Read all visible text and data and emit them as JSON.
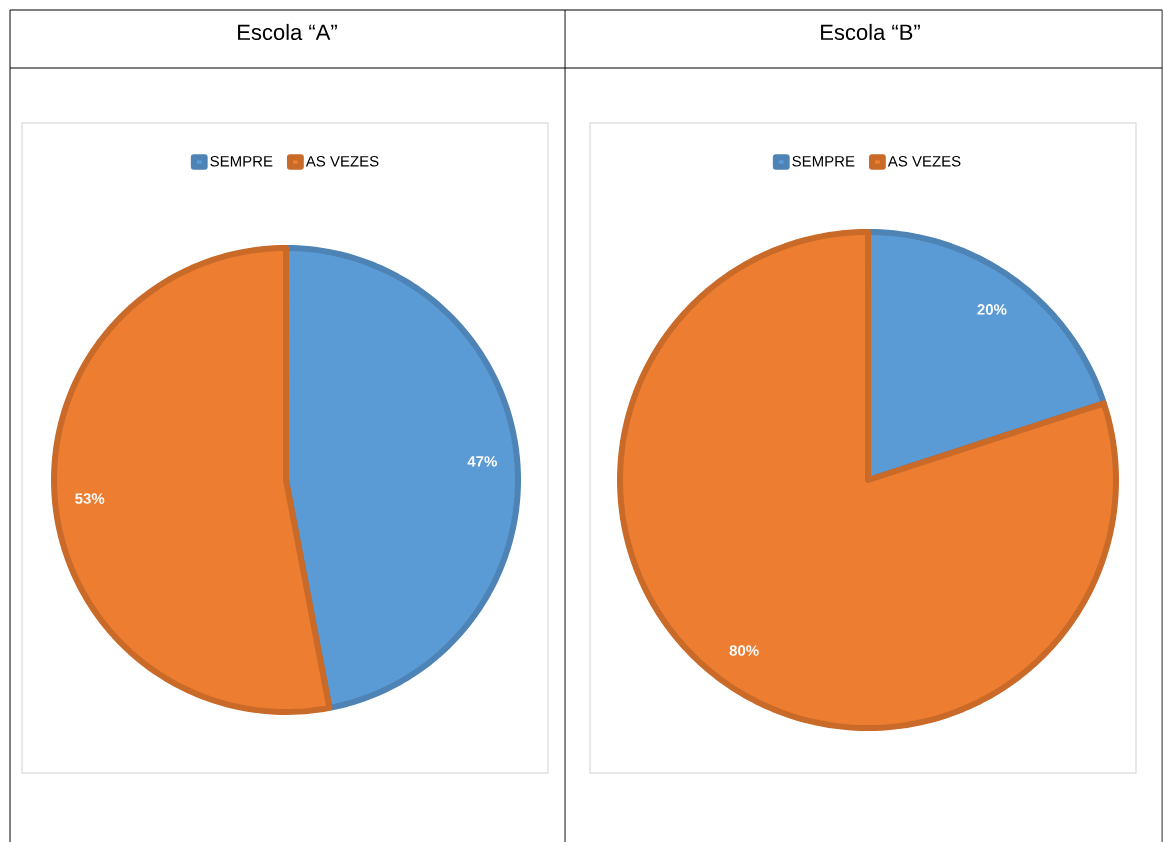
{
  "chart_data": [
    {
      "type": "pie",
      "title": "Escola “A”",
      "categories": [
        "SEMPRE",
        "AS VEZES"
      ],
      "values": [
        47,
        53
      ],
      "colors": [
        "#5b9bd5",
        "#ed7d31"
      ],
      "value_labels": [
        "47%",
        "53%"
      ],
      "legend": "top"
    },
    {
      "type": "pie",
      "title": "Escola “B”",
      "categories": [
        "SEMPRE",
        "AS VEZES"
      ],
      "values": [
        20,
        80
      ],
      "colors": [
        "#5b9bd5",
        "#ed7d31"
      ],
      "value_labels": [
        "20%",
        "80%"
      ],
      "legend": "top"
    }
  ]
}
